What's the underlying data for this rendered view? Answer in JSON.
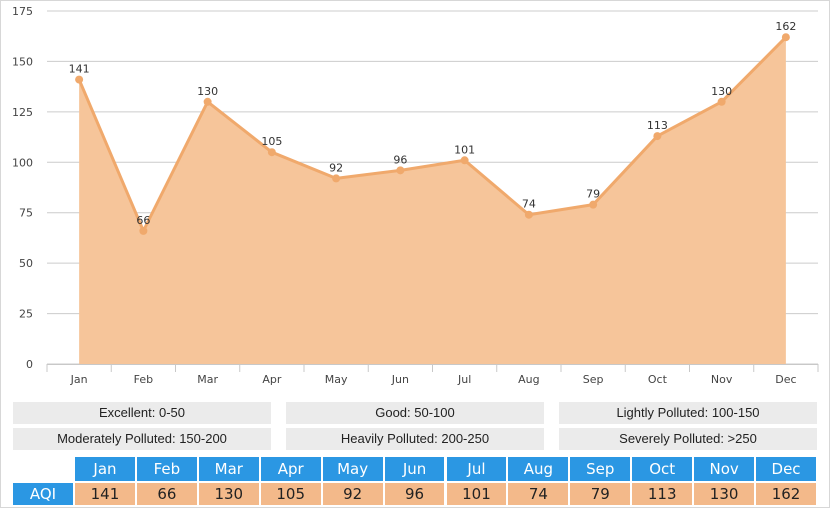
{
  "chart_data": {
    "type": "area",
    "categories": [
      "Jan",
      "Feb",
      "Mar",
      "Apr",
      "May",
      "Jun",
      "Jul",
      "Aug",
      "Sep",
      "Oct",
      "Nov",
      "Dec"
    ],
    "series": [
      {
        "values": [
          141,
          66,
          130,
          105,
          92,
          96,
          101,
          74,
          79,
          113,
          130,
          162
        ]
      }
    ],
    "ylim": [
      0,
      175
    ],
    "yticks": [
      0,
      25,
      50,
      75,
      100,
      125,
      150,
      175
    ],
    "grid": true,
    "colors": {
      "fill": "#f6c59a",
      "line": "#f0a96c",
      "grid": "#cccccc",
      "axis_text": "#444444"
    }
  },
  "legend": [
    "Excellent: 0-50",
    "Good: 50-100",
    "Lightly Polluted: 100-150",
    "Moderately Polluted: 150-200",
    "Heavily Polluted: 200-250",
    "Severely Polluted: >250"
  ],
  "table": {
    "row_label": "AQI",
    "header_color": "#2b97e3",
    "value_color": "#f3b98a"
  }
}
